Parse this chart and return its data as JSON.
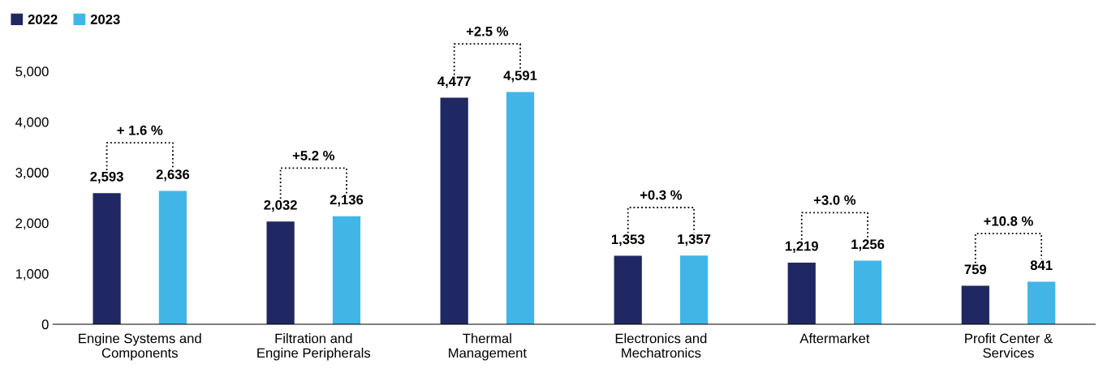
{
  "chart_data": {
    "type": "bar",
    "categories": [
      "Engine Systems and\nComponents",
      "Filtration and\nEngine Peripherals",
      "Thermal\nManagement",
      "Electronics and\nMechatronics",
      "Aftermarket",
      "Profit Center &\nServices"
    ],
    "series": [
      {
        "name": "2022",
        "color": "#1f2862",
        "values": [
          2593,
          2032,
          4477,
          1353,
          1219,
          759
        ],
        "value_labels": [
          "2,593",
          "2,032",
          "4,477",
          "1,353",
          "1,219",
          "759"
        ]
      },
      {
        "name": "2023",
        "color": "#41b6e6",
        "values": [
          2636,
          2136,
          4591,
          1357,
          1256,
          841
        ],
        "value_labels": [
          "2,636",
          "2,136",
          "4,591",
          "1,357",
          "1,256",
          "841"
        ]
      }
    ],
    "annotations": [
      "+ 1.6 %",
      "+5.2 %",
      "+2.5 %",
      "+0.3 %",
      "+3.0 %",
      "+10.8 %"
    ],
    "ylim": [
      0,
      5000
    ],
    "yticks": [
      0,
      {
        "value": 1000,
        "label": "1,000"
      },
      {
        "value": 2000,
        "label": "2,000"
      },
      {
        "value": 3000,
        "label": "3,000"
      },
      {
        "value": 4000,
        "label": "4,000"
      },
      {
        "value": 5000,
        "label": "5,000"
      }
    ],
    "grid": false,
    "legend": "top left"
  }
}
